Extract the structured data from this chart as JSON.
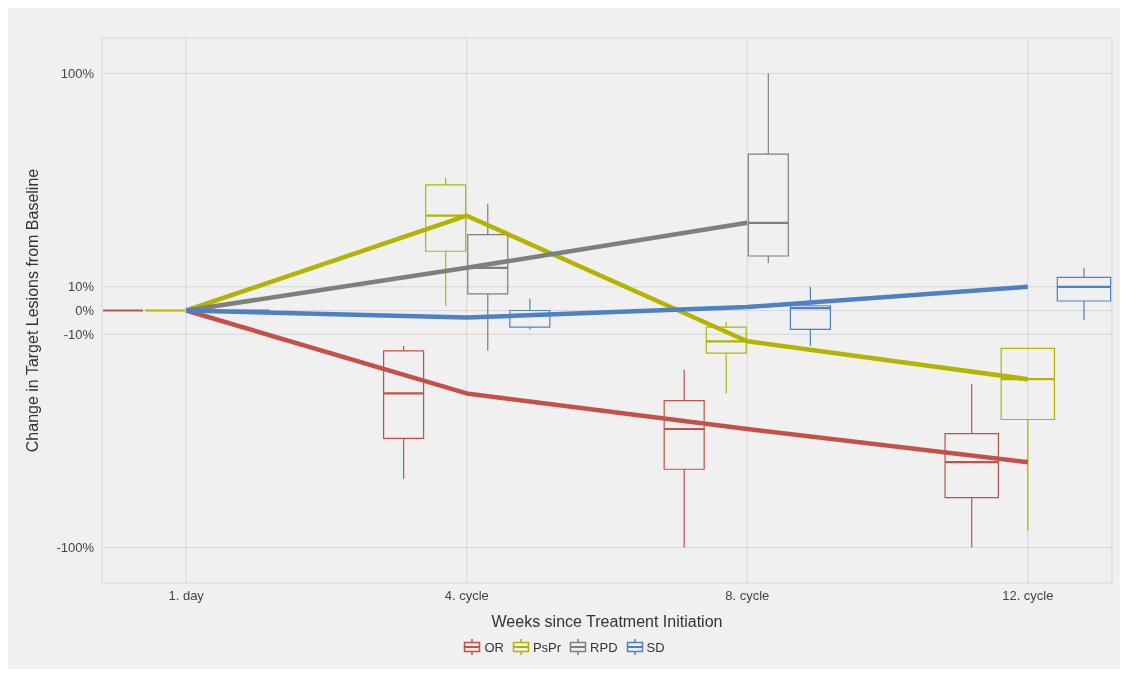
{
  "chart_data": {
    "type": "box",
    "xlabel": "Weeks since Treatment Initiation",
    "ylabel": "Change in Target Lesions from Baseline",
    "categories": [
      "1. day",
      "4. cycle",
      "8. cycle",
      "12. cycle"
    ],
    "ylim": [
      -115,
      115
    ],
    "yticks": [
      {
        "value": -100,
        "label": "-100%"
      },
      {
        "value": -10,
        "label": "-10%"
      },
      {
        "value": 0,
        "label": "0%"
      },
      {
        "value": 10,
        "label": "10%"
      },
      {
        "value": 100,
        "label": "100%"
      }
    ],
    "grid": true,
    "legend": "bottom",
    "series": [
      {
        "name": "OR",
        "color": "#c4504a",
        "boxes": [
          {
            "low": 0,
            "q1": 0,
            "median": 0,
            "q3": 0,
            "high": 0
          },
          {
            "low": -71,
            "q1": -54,
            "median": -35,
            "q3": -17,
            "high": -15
          },
          {
            "low": -100,
            "q1": -67,
            "median": -50,
            "q3": -38,
            "high": -25
          },
          {
            "low": -100,
            "q1": -79,
            "median": -64,
            "q3": -52,
            "high": -31
          }
        ]
      },
      {
        "name": "PsPr",
        "color": "#b3b300",
        "boxes": [
          {
            "low": 0,
            "q1": 0,
            "median": 0,
            "q3": 0,
            "high": 0
          },
          {
            "low": 2,
            "q1": 25,
            "median": 40,
            "q3": 53,
            "high": 56
          },
          {
            "low": -35,
            "q1": -18,
            "median": -13,
            "q3": -7,
            "high": -5
          },
          {
            "low": -93,
            "q1": -46,
            "median": -29,
            "q3": -16,
            "high": -16
          }
        ]
      },
      {
        "name": "RPD",
        "color": "#7f7f7f",
        "boxes": [
          {
            "low": 0,
            "q1": 0,
            "median": 0,
            "q3": 0,
            "high": 0
          },
          {
            "low": -17,
            "q1": 7,
            "median": 18,
            "q3": 32,
            "high": 45
          },
          {
            "low": 20,
            "q1": 23,
            "median": 37,
            "q3": 66,
            "high": 100
          },
          null
        ]
      },
      {
        "name": "SD",
        "color": "#4e81c4",
        "boxes": [
          {
            "low": 0,
            "q1": 0,
            "median": 0,
            "q3": 0,
            "high": 0
          },
          {
            "low": -8,
            "q1": -7,
            "median": -2,
            "q3": 0,
            "high": 5
          },
          {
            "low": -15,
            "q1": -8,
            "median": 1,
            "q3": 2,
            "high": 10
          },
          {
            "low": -4,
            "q1": 4,
            "median": 10,
            "q3": 14,
            "high": 18
          }
        ]
      },
      {
        "type": "line",
        "color": "#c4504a",
        "values": [
          0,
          -35,
          -50,
          -64
        ]
      },
      {
        "type": "line",
        "color": "#b3b300",
        "values": [
          0,
          40,
          -13,
          -29
        ]
      },
      {
        "type": "line",
        "color": "#7f7f7f",
        "values": [
          0,
          18,
          37,
          null
        ]
      },
      {
        "type": "line",
        "color": "#4e81c4",
        "values": [
          0,
          -3,
          1.5,
          10
        ]
      }
    ]
  }
}
